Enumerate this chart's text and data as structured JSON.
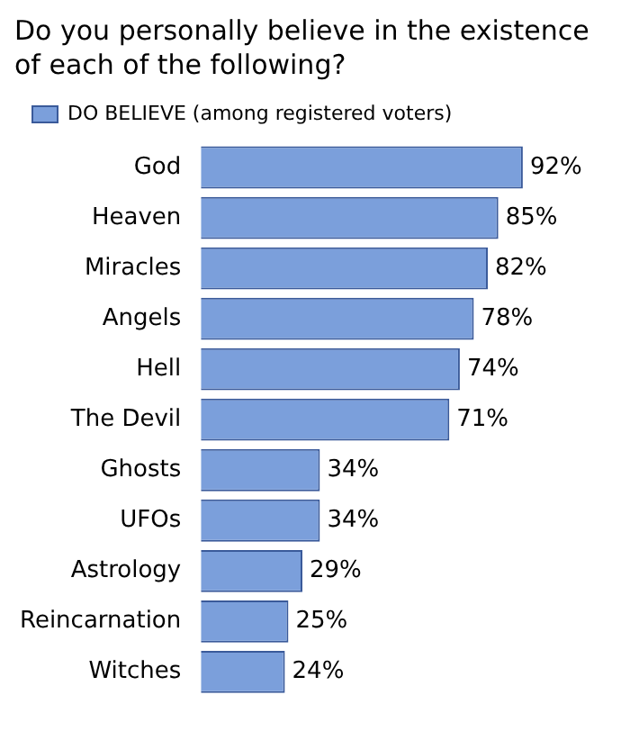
{
  "chart_data": {
    "type": "bar",
    "orientation": "horizontal",
    "title": "Do you personally believe in the existence of each of the following?",
    "categories": [
      "God",
      "Heaven",
      "Miracles",
      "Angels",
      "Hell",
      "The Devil",
      "Ghosts",
      "UFOs",
      "Astrology",
      "Reincarnation",
      "Witches"
    ],
    "series": [
      {
        "name": "DO BELIEVE (among registered voters)",
        "color": "#7b9fdb",
        "values": [
          92,
          85,
          82,
          78,
          74,
          71,
          34,
          34,
          29,
          25,
          24
        ],
        "value_labels": [
          "92%",
          "85%",
          "82%",
          "78%",
          "74%",
          "71%",
          "34%",
          "34%",
          "29%",
          "25%",
          "24%"
        ]
      }
    ],
    "legend": "top"
  }
}
